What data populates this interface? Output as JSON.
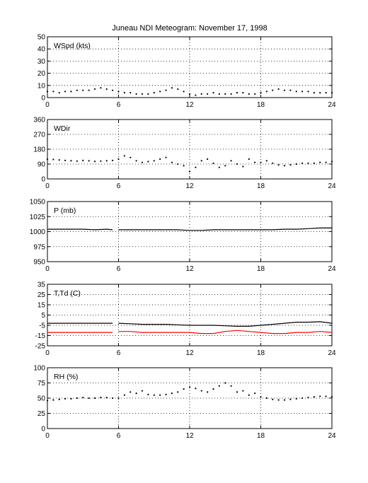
{
  "title": "Juneau NDI Meteogram:  November 17, 1998",
  "chart_data": [
    {
      "type": "scatter",
      "panel_label": "WSpd (kts)",
      "xlim": [
        0,
        24
      ],
      "ylim": [
        0,
        50
      ],
      "xticks": [
        0,
        6,
        12,
        18,
        24
      ],
      "yticks": [
        0,
        10,
        20,
        30,
        40,
        50
      ],
      "grid": "dotted",
      "series": [
        {
          "color": "#000000",
          "x": [
            0.0,
            0.5,
            1.0,
            1.5,
            2.0,
            2.5,
            3.0,
            3.5,
            4.0,
            4.5,
            5.0,
            5.5,
            5.8,
            6.0,
            6.5,
            7.0,
            7.5,
            8.0,
            8.5,
            9.0,
            9.5,
            10.0,
            10.5,
            11.0,
            11.5,
            12.0,
            12.5,
            13.0,
            13.5,
            14.0,
            14.5,
            15.0,
            15.5,
            16.0,
            16.5,
            17.0,
            17.5,
            18.0,
            18.5,
            19.0,
            19.5,
            20.0,
            20.5,
            21.0,
            21.5,
            22.0,
            22.5,
            23.0,
            23.5,
            24.0
          ],
          "y": [
            5,
            5,
            4,
            5,
            5,
            6,
            6,
            6,
            7,
            8,
            7,
            6,
            null,
            5,
            4,
            4,
            3,
            3,
            3,
            4,
            5,
            6,
            8,
            7,
            5,
            3,
            2,
            3,
            3,
            4,
            3,
            3,
            3,
            4,
            4,
            3,
            3,
            4,
            5,
            6,
            7,
            6,
            6,
            5,
            5,
            5,
            4,
            4,
            4,
            4
          ]
        }
      ]
    },
    {
      "type": "scatter",
      "panel_label": "WDir",
      "xlim": [
        0,
        24
      ],
      "ylim": [
        0,
        360
      ],
      "xticks": [
        0,
        6,
        12,
        18,
        24
      ],
      "yticks": [
        0,
        90,
        180,
        270,
        360
      ],
      "grid": "dotted",
      "series": [
        {
          "color": "#000000",
          "x": [
            0.0,
            0.5,
            1.0,
            1.5,
            2.0,
            2.5,
            3.0,
            3.5,
            4.0,
            4.5,
            5.0,
            5.5,
            5.8,
            6.0,
            6.5,
            7.0,
            7.5,
            8.0,
            8.5,
            9.0,
            9.5,
            10.0,
            10.5,
            11.0,
            11.5,
            12.0,
            12.5,
            13.0,
            13.5,
            14.0,
            14.5,
            15.0,
            15.5,
            16.0,
            16.5,
            17.0,
            17.5,
            18.0,
            18.5,
            19.0,
            19.5,
            20.0,
            20.5,
            21.0,
            21.5,
            22.0,
            22.5,
            23.0,
            23.5,
            24.0
          ],
          "y": [
            120,
            118,
            115,
            112,
            110,
            108,
            112,
            110,
            106,
            108,
            110,
            112,
            null,
            120,
            140,
            130,
            110,
            100,
            105,
            110,
            120,
            130,
            100,
            90,
            80,
            45,
            70,
            110,
            120,
            95,
            70,
            80,
            110,
            90,
            75,
            120,
            100,
            100,
            110,
            95,
            85,
            80,
            85,
            90,
            95,
            95,
            95,
            100,
            100,
            105
          ]
        }
      ]
    },
    {
      "type": "line",
      "panel_label": "P (mb)",
      "xlim": [
        0,
        24
      ],
      "ylim": [
        950,
        1050
      ],
      "xticks": [
        0,
        6,
        12,
        18,
        24
      ],
      "yticks": [
        950,
        975,
        1000,
        1025,
        1050
      ],
      "grid": "dotted",
      "series": [
        {
          "color": "#000000",
          "x": [
            0.0,
            1.0,
            2.0,
            3.0,
            4.0,
            5.0,
            5.5,
            5.8,
            6.0,
            7.0,
            8.0,
            9.0,
            10.0,
            11.0,
            12.0,
            13.0,
            14.0,
            15.0,
            16.0,
            17.0,
            18.0,
            19.0,
            20.0,
            21.0,
            22.0,
            23.0,
            24.0
          ],
          "y": [
            1004,
            1004,
            1004,
            1004,
            1003,
            1004,
            1003,
            null,
            1003,
            1003,
            1003,
            1003,
            1003,
            1003,
            1002,
            1002,
            1003,
            1003,
            1003,
            1003,
            1003,
            1003,
            1004,
            1004,
            1005,
            1006,
            1006
          ]
        }
      ]
    },
    {
      "type": "line",
      "panel_label": "T,Td (C)",
      "xlim": [
        0,
        24
      ],
      "ylim": [
        -25,
        35
      ],
      "xticks": [
        0,
        6,
        12,
        18,
        24
      ],
      "yticks": [
        -25,
        -15,
        -5,
        5,
        15,
        25,
        35
      ],
      "grid": "dotted",
      "series": [
        {
          "color": "#000000",
          "x": [
            0.0,
            1.0,
            2.0,
            3.0,
            4.0,
            5.0,
            5.5,
            5.8,
            6.0,
            7.0,
            8.0,
            9.0,
            10.0,
            11.0,
            12.0,
            13.0,
            14.0,
            15.0,
            16.0,
            17.0,
            18.0,
            19.0,
            20.0,
            21.0,
            22.0,
            23.0,
            24.0
          ],
          "y": [
            -3,
            -3,
            -3,
            -3,
            -3,
            -3,
            -3,
            null,
            -3,
            -3.5,
            -4,
            -4,
            -4,
            -4.5,
            -5,
            -5,
            -5,
            -5.5,
            -6,
            -6,
            -5,
            -4,
            -3,
            -2,
            -2,
            -1.5,
            -3
          ]
        },
        {
          "color": "#ff0000",
          "x": [
            0.0,
            1.0,
            2.0,
            3.0,
            4.0,
            5.0,
            5.5,
            5.8,
            6.0,
            7.0,
            8.0,
            9.0,
            10.0,
            11.0,
            12.0,
            13.0,
            14.0,
            15.0,
            16.0,
            17.0,
            18.0,
            19.0,
            20.0,
            21.0,
            22.0,
            23.0,
            24.0
          ],
          "y": [
            -12,
            -12,
            -12,
            -12,
            -12,
            -12,
            -12,
            null,
            -11,
            -11,
            -12,
            -12,
            -12,
            -12,
            -12,
            -13,
            -13,
            -11,
            -10,
            -11,
            -12,
            -13,
            -13,
            -12,
            -12,
            -11,
            -12
          ]
        }
      ]
    },
    {
      "type": "scatter",
      "panel_label": "RH (%)",
      "xlim": [
        0,
        24
      ],
      "ylim": [
        0,
        100
      ],
      "xticks": [
        0,
        6,
        12,
        18,
        24
      ],
      "yticks": [
        0,
        25,
        50,
        75,
        100
      ],
      "grid": "dotted",
      "series": [
        {
          "color": "#000000",
          "x": [
            0.0,
            0.5,
            1.0,
            1.5,
            2.0,
            2.5,
            3.0,
            3.5,
            4.0,
            4.5,
            5.0,
            5.5,
            5.8,
            6.0,
            6.5,
            7.0,
            7.5,
            8.0,
            8.5,
            9.0,
            9.5,
            10.0,
            10.5,
            11.0,
            11.5,
            12.0,
            12.5,
            13.0,
            13.5,
            14.0,
            14.5,
            15.0,
            15.5,
            16.0,
            16.5,
            17.0,
            17.5,
            18.0,
            18.5,
            19.0,
            19.5,
            20.0,
            20.5,
            21.0,
            21.5,
            22.0,
            22.5,
            23.0,
            23.5,
            24.0
          ],
          "y": [
            46,
            47,
            48,
            49,
            49,
            50,
            51,
            50,
            50,
            51,
            51,
            50,
            null,
            50,
            55,
            60,
            58,
            62,
            56,
            55,
            55,
            56,
            58,
            60,
            65,
            68,
            66,
            62,
            60,
            65,
            70,
            75,
            70,
            60,
            62,
            55,
            58,
            52,
            50,
            48,
            47,
            47,
            48,
            49,
            50,
            51,
            52,
            53,
            53,
            52
          ]
        }
      ]
    }
  ]
}
